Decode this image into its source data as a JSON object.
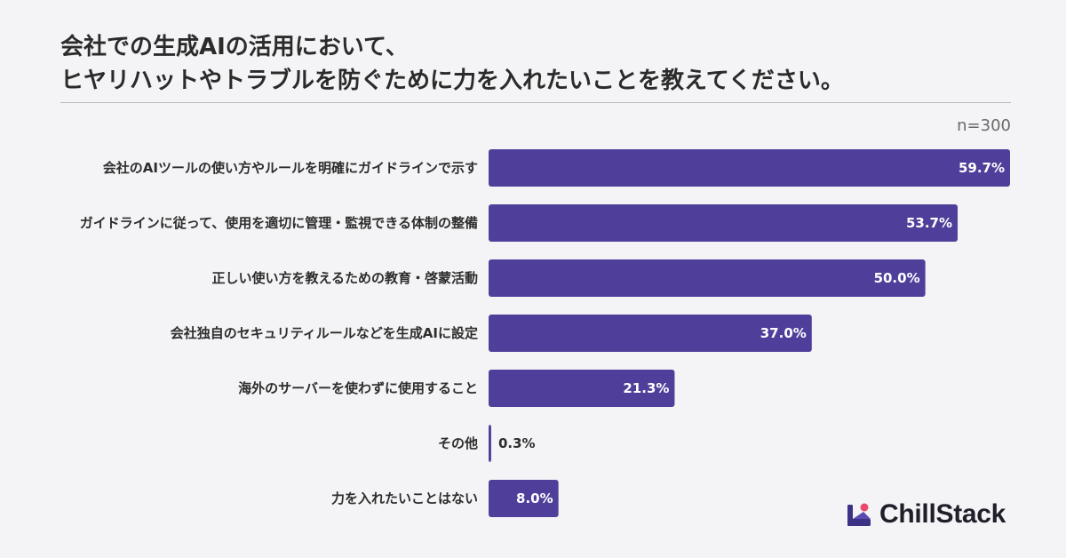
{
  "title_lines": [
    "会社での生成AIの活用において、",
    "ヒヤリハットやトラブルを防ぐために力を入れたいことを教えてください。"
  ],
  "sample_label": "n=300",
  "brand": {
    "name": "ChillStack",
    "logo_icon": "chillstack-logo-icon"
  },
  "colors": {
    "bar": "#4f3f9a",
    "background": "#f4f4f6",
    "label_text": "#2d2d2d",
    "value_inside": "#ffffff",
    "value_outside": "#2d2d2d",
    "logo_accent": "#e94a6b"
  },
  "chart_data": {
    "type": "bar",
    "orientation": "horizontal",
    "categories": [
      "会社のAIツールの使い方やルールを明確にガイドラインで示す",
      "ガイドラインに従って、使用を適切に管理・監視できる体制の整備",
      "正しい使い方を教えるための教育・啓蒙活動",
      "会社独自のセキュリティルールなどを生成AIに設定",
      "海外のサーバーを使わずに使用すること",
      "その他",
      "力を入れたいことはない"
    ],
    "values": [
      59.7,
      53.7,
      50.0,
      37.0,
      21.3,
      0.3,
      8.0
    ],
    "value_labels": [
      "59.7%",
      "53.7%",
      "50.0%",
      "37.0%",
      "21.3%",
      "0.3%",
      "8.0%"
    ],
    "unit": "%",
    "grid": false,
    "legend": "none"
  }
}
